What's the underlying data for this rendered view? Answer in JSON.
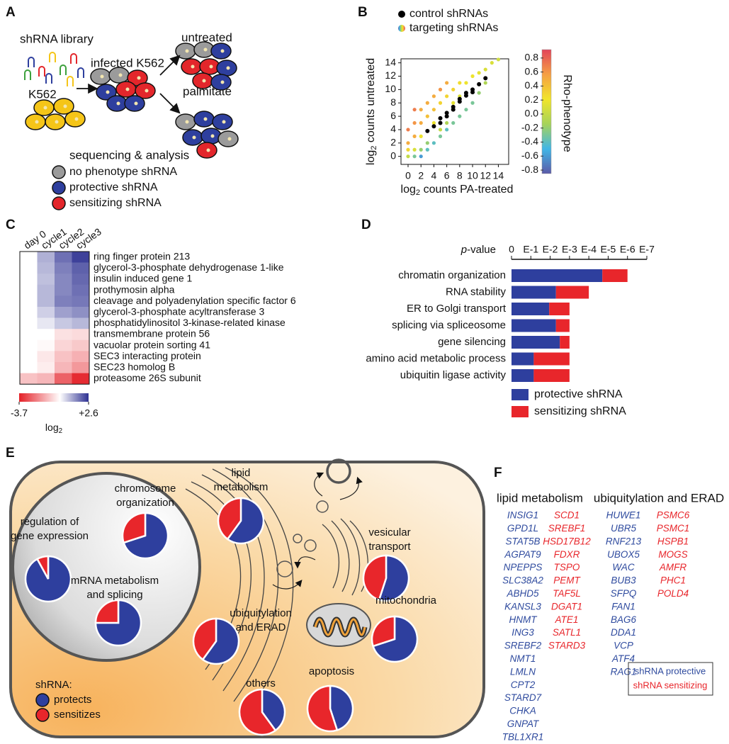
{
  "panel_labels": [
    "A",
    "B",
    "C",
    "D",
    "E",
    "F"
  ],
  "panel_a": {
    "library": "shRNA library",
    "cell": "K562",
    "infected": "infected K562",
    "untreated": "untreated",
    "palmitate": "palmitate",
    "analysis": "sequencing & analysis",
    "legend": [
      {
        "label": "no phenotype shRNA",
        "color": "#9b9b9b"
      },
      {
        "label": "protective shRNA",
        "color": "#2e3f9e"
      },
      {
        "label": "sensitizing shRNA",
        "color": "#e3262b"
      }
    ]
  },
  "chart_data": [
    {
      "type": "scatter",
      "series": [
        {
          "name": "control shRNAs",
          "color": "#000000",
          "x": [
            3,
            4,
            5,
            6,
            7,
            8,
            9,
            10,
            11,
            12,
            5,
            7,
            9,
            10,
            6,
            8
          ],
          "y": [
            3.8,
            4.5,
            5.7,
            6.5,
            7.4,
            8.2,
            9.1,
            10,
            10.8,
            11.7,
            5,
            7,
            9.5,
            9.6,
            6,
            8.6
          ]
        },
        {
          "name": "targeting shRNAs",
          "x": [
            1,
            1,
            1,
            1,
            1,
            2,
            2,
            2,
            2,
            2,
            3,
            3,
            3,
            3,
            4,
            4,
            4,
            4,
            5,
            5,
            5,
            5,
            6,
            6,
            6,
            6,
            7,
            7,
            7,
            8,
            8,
            8,
            9,
            9,
            10,
            10,
            11,
            11,
            12,
            12,
            13,
            14,
            0,
            0,
            0,
            0
          ],
          "y": [
            3,
            5,
            7,
            1,
            0,
            5,
            7,
            3,
            1,
            0,
            6,
            8,
            2,
            1,
            7,
            9,
            5,
            2,
            8,
            10,
            4,
            3,
            9,
            11,
            5,
            4,
            10,
            5,
            8,
            11,
            6,
            9,
            11,
            7,
            12,
            8,
            12.5,
            9.5,
            13,
            11,
            14,
            14.5,
            2,
            4,
            0,
            1
          ],
          "rho": [
            0.5,
            0.6,
            0.7,
            0.1,
            -0.3,
            0.5,
            0.5,
            0.2,
            -0.2,
            -0.6,
            0.4,
            0.5,
            -0.2,
            -0.4,
            0.4,
            0.5,
            0.2,
            -0.4,
            0.3,
            0.6,
            0,
            -0.3,
            0.3,
            0.5,
            -0.1,
            -0.4,
            0.3,
            -0.3,
            0.15,
            0.25,
            -0.3,
            0.1,
            0.2,
            -0.3,
            0.2,
            -0.3,
            0.15,
            -0.2,
            0.1,
            -0.1,
            0.1,
            0.05,
            0.5,
            0.7,
            0,
            0.3
          ]
        }
      ],
      "x_label": {
        "prefix": "log",
        "sub": "2",
        "text": " counts PA-treated"
      },
      "y_label": {
        "prefix": "log",
        "sub": "2",
        "text": " counts untreated"
      },
      "xlim": [
        -1.1,
        15.6
      ],
      "ylim": [
        -1.2,
        14.6
      ],
      "xticks": [
        0,
        2,
        4,
        6,
        8,
        10,
        12,
        14
      ],
      "yticks": [
        0,
        2,
        4,
        6,
        8,
        10,
        12,
        14
      ],
      "colorbar": {
        "label": "Rho-phenotype",
        "lim": [
          -0.85,
          0.92
        ],
        "ticks": [
          -0.8,
          -0.6,
          -0.4,
          -0.2,
          {
            "value": 0,
            "label": "0.0"
          },
          0.2,
          0.4,
          0.6,
          0.8
        ],
        "colors": [
          "#5b5aa8",
          "#41b6e6",
          "#a6d35a",
          "#f1e52b",
          "#f59f45",
          "#e2455a"
        ]
      }
    },
    {
      "type": "heatmap",
      "columns": [
        "day 0",
        "cycle1",
        "cycle2",
        "cycle3"
      ],
      "rows": [
        "ring finger protein 213",
        "glycerol-3-phosphate dehydrogenase 1-like",
        "insulin induced gene 1",
        "prothymosin alpha",
        "cleavage and polyadenylation specific factor 6",
        "glycerol-3-phosphate acyltransferase 3",
        "phosphatidylinositol 3-kinase-related kinase",
        "transmembrane protein 56",
        "vacuolar protein sorting 41",
        "SEC3 interacting protein",
        "SEC23 homolog B",
        "proteasome 26S subunit"
      ],
      "values": [
        [
          0,
          1.0,
          1.8,
          2.4
        ],
        [
          0,
          0.9,
          1.6,
          2.0
        ],
        [
          0,
          0.8,
          1.5,
          1.9
        ],
        [
          0,
          0.9,
          1.5,
          1.8
        ],
        [
          0,
          0.9,
          1.6,
          1.7
        ],
        [
          0,
          0.6,
          1.2,
          1.4
        ],
        [
          0,
          0.3,
          0.7,
          0.9
        ],
        [
          0,
          0,
          -0.5,
          -0.6
        ],
        [
          0,
          -0.1,
          -0.7,
          -0.9
        ],
        [
          0,
          -0.4,
          -1.0,
          -1.3
        ],
        [
          0,
          -0.3,
          -1.2,
          -1.7
        ],
        [
          -1.0,
          -1.2,
          -2.6,
          -3.5
        ]
      ],
      "zlim": [
        -3.7,
        2.6
      ],
      "zticks": [
        -3.7,
        {
          "value": 2.6,
          "label": "+2.6"
        }
      ],
      "colorbar_label": {
        "prefix": "log",
        "sub": "2"
      },
      "colors": [
        "#e41f26",
        "#ffffff",
        "#2e3192"
      ]
    },
    {
      "type": "bar",
      "orientation": "horizontal",
      "stacked": true,
      "categories": [
        "chromatin organization",
        "RNA stability",
        "ER to Golgi transport",
        "splicing via spliceosome",
        "gene silencing",
        "amino acid metabolic process",
        "ubiquitin ligase activity"
      ],
      "series": [
        {
          "name": "protective shRNA",
          "color": "#2e3f9e",
          "values": [
            4.7,
            2.3,
            1.95,
            2.3,
            2.5,
            1.15,
            1.15
          ]
        },
        {
          "name": "sensitizing shRNA",
          "color": "#e8262b",
          "values": [
            1.3,
            1.7,
            1.05,
            0.7,
            0.5,
            1.85,
            1.85
          ]
        }
      ],
      "xlim": [
        0,
        7
      ],
      "xticks": [
        0,
        {
          "value": 1,
          "label": "E-1"
        },
        {
          "value": 2,
          "label": "E-2"
        },
        {
          "value": 3,
          "label": "E-3"
        },
        {
          "value": 4,
          "label": "E-4"
        },
        {
          "value": 5,
          "label": "E-5"
        },
        {
          "value": 6,
          "label": "E-6"
        },
        {
          "value": 7,
          "label": "E-7"
        }
      ],
      "x_label": {
        "italic": "p",
        "text": "-value"
      }
    }
  ],
  "panel_e": {
    "pies": [
      {
        "label": [
          "lipid",
          "metabolism"
        ],
        "values": [
          60,
          40
        ]
      },
      {
        "label": [
          "chromosome",
          "organization"
        ],
        "values": [
          70,
          30
        ]
      },
      {
        "label": [
          "regulation of",
          "gene expression"
        ],
        "values": [
          92,
          8
        ]
      },
      {
        "label": [
          "mRNA metabolism",
          "and splicing"
        ],
        "values": [
          75,
          25
        ]
      },
      {
        "label": [
          "ubiquitylation",
          "and ERAD"
        ],
        "values": [
          60,
          40
        ]
      },
      {
        "label": [
          "vesicular",
          "transport"
        ],
        "values": [
          55,
          45
        ]
      },
      {
        "label": [
          "mitochondria"
        ],
        "values": [
          70,
          30
        ]
      },
      {
        "label": [
          "others"
        ],
        "values": [
          40,
          60
        ]
      },
      {
        "label": [
          "apoptosis"
        ],
        "values": [
          45,
          55
        ]
      }
    ],
    "legend": {
      "title": "shRNA:",
      "items": [
        {
          "label": "protects",
          "color": "#2e3f9e"
        },
        {
          "label": "sensitizes",
          "color": "#e8262b"
        }
      ]
    }
  },
  "panel_f": {
    "groups": [
      {
        "title": "lipid metabolism",
        "protective": [
          "INSIG1",
          "GPD1L",
          "STAT5B",
          "AGPAT9",
          "NPEPPS",
          "SLC38A2",
          "ABHD5",
          "KANSL3",
          "HNMT",
          "ING3",
          "SREBF2",
          "NMT1",
          "LMLN",
          "CPT2",
          "STARD7",
          "CHKA",
          "GNPAT",
          "TBL1XR1"
        ],
        "sensitizing": [
          "SCD1",
          "SREBF1",
          "HSD17B12",
          "FDXR",
          "TSPO",
          "PEMT",
          "TAF5L",
          "DGAT1",
          "ATE1",
          "SATL1",
          "STARD3"
        ]
      },
      {
        "title": "ubiquitylation and ERAD",
        "protective": [
          "HUWE1",
          "UBR5",
          "RNF213",
          "UBOX5",
          "WAC",
          "BUB3",
          "SFPQ",
          "FAN1",
          "BAG6",
          "DDA1",
          "VCP",
          "ATF4",
          "RAG1"
        ],
        "sensitizing": [
          "PSMC6",
          "PSMC1",
          "HSPB1",
          "MOGS",
          "AMFR",
          "PHC1",
          "POLD4"
        ]
      }
    ],
    "legend": [
      {
        "label": "shRNA protective",
        "color": "#2e4a9e"
      },
      {
        "label": "shRNA sensitizing",
        "color": "#e8262b"
      }
    ]
  }
}
